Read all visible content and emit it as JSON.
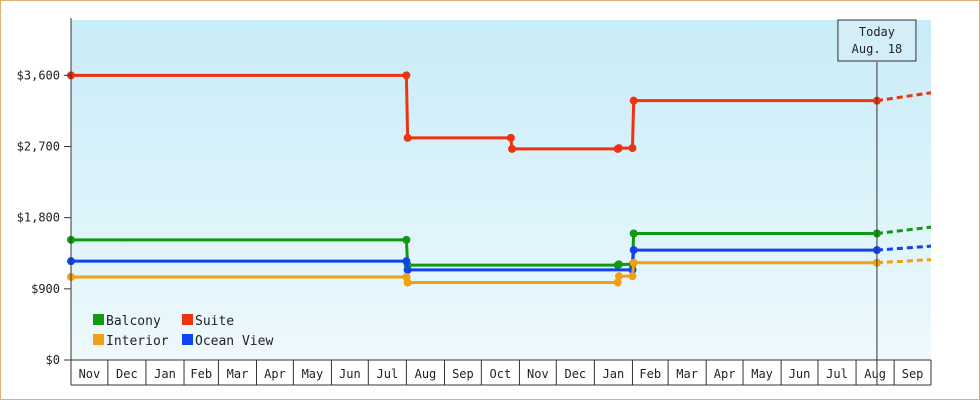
{
  "chart_data": {
    "type": "line",
    "step": true,
    "title": "",
    "xlabel": "",
    "ylabel": "",
    "ylim": [
      0,
      4300
    ],
    "y_ticks": [
      {
        "value": 0,
        "label": "$0"
      },
      {
        "value": 900,
        "label": "$900"
      },
      {
        "value": 1800,
        "label": "$1,800"
      },
      {
        "value": 2700,
        "label": "$2,700"
      },
      {
        "value": 3600,
        "label": "$3,600"
      }
    ],
    "x_range": [
      "2022-11-01",
      "2024-10-01"
    ],
    "months": [
      "Nov",
      "Dec",
      "Jan",
      "Feb",
      "Mar",
      "Apr",
      "May",
      "Jun",
      "Jul",
      "Aug",
      "Sep",
      "Oct",
      "Nov",
      "Dec",
      "Jan",
      "Feb",
      "Mar",
      "Apr",
      "May",
      "Jun",
      "Jul",
      "Aug",
      "Sep"
    ],
    "today": {
      "date": "2024-08-18",
      "line1": "Today",
      "line2": "Aug. 18"
    },
    "legend": {
      "placement": "bottom-left"
    },
    "background": {
      "top": "#c8ecf8",
      "bottom": "#eef9fd"
    },
    "series": [
      {
        "name": "Suite",
        "color": "#ee3311",
        "points": [
          {
            "x": "2022-11-01",
            "y": 3600
          },
          {
            "x": "2023-08-01",
            "y": 3600
          },
          {
            "x": "2023-08-02",
            "y": 2810
          },
          {
            "x": "2023-10-25",
            "y": 2810
          },
          {
            "x": "2023-10-26",
            "y": 2670
          },
          {
            "x": "2024-01-20",
            "y": 2670
          },
          {
            "x": "2024-01-21",
            "y": 2680
          },
          {
            "x": "2024-02-01",
            "y": 2680
          },
          {
            "x": "2024-02-02",
            "y": 3280
          },
          {
            "x": "2024-08-18",
            "y": 3280
          }
        ],
        "projection": {
          "x": "2024-10-01",
          "y": 3380
        }
      },
      {
        "name": "Balcony",
        "color": "#119911",
        "points": [
          {
            "x": "2022-11-01",
            "y": 1520
          },
          {
            "x": "2023-08-01",
            "y": 1520
          },
          {
            "x": "2023-08-02",
            "y": 1200
          },
          {
            "x": "2024-01-20",
            "y": 1200
          },
          {
            "x": "2024-01-21",
            "y": 1210
          },
          {
            "x": "2024-02-01",
            "y": 1210
          },
          {
            "x": "2024-02-02",
            "y": 1600
          },
          {
            "x": "2024-08-18",
            "y": 1600
          }
        ],
        "projection": {
          "x": "2024-10-01",
          "y": 1680
        }
      },
      {
        "name": "Ocean View",
        "color": "#1144ee",
        "points": [
          {
            "x": "2022-11-01",
            "y": 1250
          },
          {
            "x": "2023-08-01",
            "y": 1250
          },
          {
            "x": "2023-08-02",
            "y": 1140
          },
          {
            "x": "2024-02-01",
            "y": 1140
          },
          {
            "x": "2024-02-02",
            "y": 1390
          },
          {
            "x": "2024-08-18",
            "y": 1390
          }
        ],
        "projection": {
          "x": "2024-10-01",
          "y": 1440
        }
      },
      {
        "name": "Interior",
        "color": "#f0a010",
        "points": [
          {
            "x": "2022-11-01",
            "y": 1050
          },
          {
            "x": "2023-08-01",
            "y": 1050
          },
          {
            "x": "2023-08-02",
            "y": 980
          },
          {
            "x": "2024-01-20",
            "y": 980
          },
          {
            "x": "2024-01-21",
            "y": 1060
          },
          {
            "x": "2024-02-01",
            "y": 1060
          },
          {
            "x": "2024-02-02",
            "y": 1230
          },
          {
            "x": "2024-08-18",
            "y": 1230
          }
        ],
        "projection": {
          "x": "2024-10-01",
          "y": 1270
        }
      }
    ],
    "legend_entries": [
      {
        "name": "Balcony",
        "color": "#119911"
      },
      {
        "name": "Suite",
        "color": "#ee3311"
      },
      {
        "name": "Interior",
        "color": "#f0a010"
      },
      {
        "name": "Ocean View",
        "color": "#1144ee"
      }
    ]
  }
}
